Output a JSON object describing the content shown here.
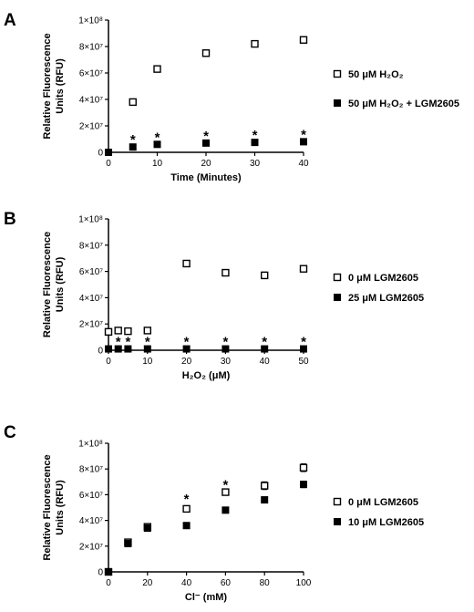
{
  "chart_data": [
    {
      "panel": "A",
      "type": "scatter",
      "title": "",
      "xlabel": "Time (Minutes)",
      "ylabel_lines": [
        "Relative Fluorescence",
        "Units (RFU)"
      ],
      "xlim": [
        0,
        40
      ],
      "ylim": [
        0,
        100000000
      ],
      "x_ticks": [
        0,
        10,
        20,
        30,
        40
      ],
      "y_ticks": [
        {
          "value": 0,
          "label": "0"
        },
        {
          "value": 20000000,
          "label": "2×10⁷"
        },
        {
          "value": 40000000,
          "label": "4×10⁷"
        },
        {
          "value": 60000000,
          "label": "6×10⁷"
        },
        {
          "value": 80000000,
          "label": "8×10⁷"
        },
        {
          "value": 100000000,
          "label": "1×10⁸"
        }
      ],
      "legend_position": "right",
      "series": [
        {
          "name": "50 μM H₂O₂",
          "marker": "open-square",
          "color": "#000000",
          "x": [
            5,
            10,
            20,
            30,
            40
          ],
          "y": [
            38000000,
            63000000,
            75000000,
            82000000,
            85000000
          ],
          "err": [
            0,
            1500000,
            1500000,
            1000000,
            0
          ]
        },
        {
          "name": "50 μM H₂O₂ + LGM2605",
          "marker": "filled-square",
          "color": "#000000",
          "x": [
            0,
            5,
            10,
            20,
            30,
            40
          ],
          "y": [
            0,
            4000000,
            6000000,
            7000000,
            7500000,
            8000000
          ],
          "err": [
            0,
            0,
            0,
            0,
            0,
            0
          ]
        }
      ],
      "significance_x": [
        5,
        10,
        20,
        30,
        40
      ],
      "significance_symbol": "*"
    },
    {
      "panel": "B",
      "type": "scatter",
      "title": "",
      "xlabel": "H₂O₂ (μM)",
      "ylabel_lines": [
        "Relative Fluorescence",
        "Units (RFU)"
      ],
      "xlim": [
        0,
        50
      ],
      "ylim": [
        0,
        100000000
      ],
      "x_ticks": [
        0,
        10,
        20,
        30,
        40,
        50
      ],
      "y_ticks": [
        {
          "value": 0,
          "label": "0"
        },
        {
          "value": 20000000,
          "label": "2×10⁷"
        },
        {
          "value": 40000000,
          "label": "4×10⁷"
        },
        {
          "value": 60000000,
          "label": "6×10⁷"
        },
        {
          "value": 80000000,
          "label": "8×10⁷"
        },
        {
          "value": 100000000,
          "label": "1×10⁸"
        }
      ],
      "legend_position": "right",
      "series": [
        {
          "name": "0 μM LGM2605",
          "marker": "open-square",
          "color": "#000000",
          "x": [
            0,
            2.5,
            5,
            10,
            20,
            30,
            40,
            50
          ],
          "y": [
            14000000,
            15000000,
            14500000,
            15000000,
            66000000,
            59000000,
            57000000,
            62000000
          ],
          "err": [
            0,
            0,
            0,
            0,
            0,
            0,
            2500000,
            0
          ]
        },
        {
          "name": "25 μM LGM2605",
          "marker": "filled-square",
          "color": "#000000",
          "x": [
            0,
            2.5,
            5,
            10,
            20,
            30,
            40,
            50
          ],
          "y": [
            1000000,
            1000000,
            1000000,
            1000000,
            1000000,
            1000000,
            1000000,
            1000000
          ],
          "err": [
            0,
            0,
            0,
            0,
            0,
            0,
            0,
            0
          ]
        }
      ],
      "significance_x": [
        2.5,
        5,
        10,
        20,
        30,
        40,
        50
      ],
      "significance_symbol": "*"
    },
    {
      "panel": "C",
      "type": "scatter",
      "title": "",
      "xlabel": "Cl⁻ (mM)",
      "ylabel_lines": [
        "Relative Fluorescence",
        "Units (RFU)"
      ],
      "xlim": [
        0,
        100
      ],
      "ylim": [
        0,
        100000000
      ],
      "x_ticks": [
        0,
        20,
        40,
        60,
        80,
        100
      ],
      "y_ticks": [
        {
          "value": 0,
          "label": "0"
        },
        {
          "value": 20000000,
          "label": "2×10⁷"
        },
        {
          "value": 40000000,
          "label": "4×10⁷"
        },
        {
          "value": 60000000,
          "label": "6×10⁷"
        },
        {
          "value": 80000000,
          "label": "8×10⁷"
        },
        {
          "value": 100000000,
          "label": "1×10⁸"
        }
      ],
      "legend_position": "right",
      "series": [
        {
          "name": "0 μM LGM2605",
          "marker": "open-square",
          "color": "#000000",
          "x": [
            0,
            10,
            20,
            40,
            60,
            80,
            100
          ],
          "y": [
            0,
            23000000,
            35000000,
            49000000,
            62000000,
            67000000,
            81000000
          ],
          "err": [
            0,
            1500000,
            1500000,
            2000000,
            0,
            3000000,
            3000000
          ]
        },
        {
          "name": "10 μM LGM2605",
          "marker": "filled-square",
          "color": "#000000",
          "x": [
            0,
            10,
            20,
            40,
            60,
            80,
            100
          ],
          "y": [
            0,
            22000000,
            34000000,
            36000000,
            48000000,
            56000000,
            68000000
          ],
          "err": [
            0,
            1500000,
            1500000,
            2000000,
            0,
            0,
            2500000
          ]
        }
      ],
      "significance_x": [
        40,
        60
      ],
      "significance_symbol": "*"
    }
  ]
}
